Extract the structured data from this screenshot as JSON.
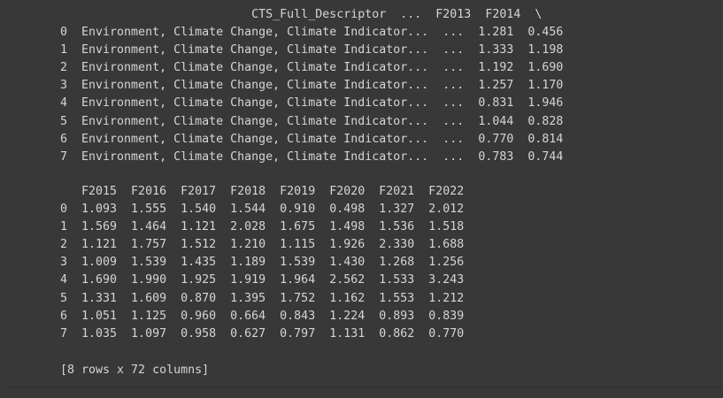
{
  "output": {
    "block_1": {
      "header": "                           CTS_Full_Descriptor  ...  F2013  F2014  \\",
      "rows": [
        "0  Environment, Climate Change, Climate Indicator...  ...  1.281  0.456",
        "1  Environment, Climate Change, Climate Indicator...  ...  1.333  1.198",
        "2  Environment, Climate Change, Climate Indicator...  ...  1.192  1.690",
        "3  Environment, Climate Change, Climate Indicator...  ...  1.257  1.170",
        "4  Environment, Climate Change, Climate Indicator...  ...  0.831  1.946",
        "5  Environment, Climate Change, Climate Indicator...  ...  1.044  0.828",
        "6  Environment, Climate Change, Climate Indicator...  ...  0.770  0.814",
        "7  Environment, Climate Change, Climate Indicator...  ...  0.783  0.744"
      ]
    },
    "block_2": {
      "header": "   F2015  F2016  F2017  F2018  F2019  F2020  F2021  F2022",
      "rows": [
        "0  1.093  1.555  1.540  1.544  0.910  0.498  1.327  2.012",
        "1  1.569  1.464  1.121  2.028  1.675  1.498  1.536  1.518",
        "2  1.121  1.757  1.512  1.210  1.115  1.926  2.330  1.688",
        "3  1.009  1.539  1.435  1.189  1.539  1.430  1.268  1.256",
        "4  1.690  1.990  1.925  1.919  1.964  2.562  1.533  3.243",
        "5  1.331  1.609  0.870  1.395  1.752  1.162  1.553  1.212",
        "6  1.051  1.125  0.960  0.664  0.843  1.224  0.893  0.839",
        "7  1.035  1.097  0.958  0.627  0.797  1.131  0.862  0.770"
      ]
    },
    "summary": "[8 rows x 72 columns]"
  }
}
